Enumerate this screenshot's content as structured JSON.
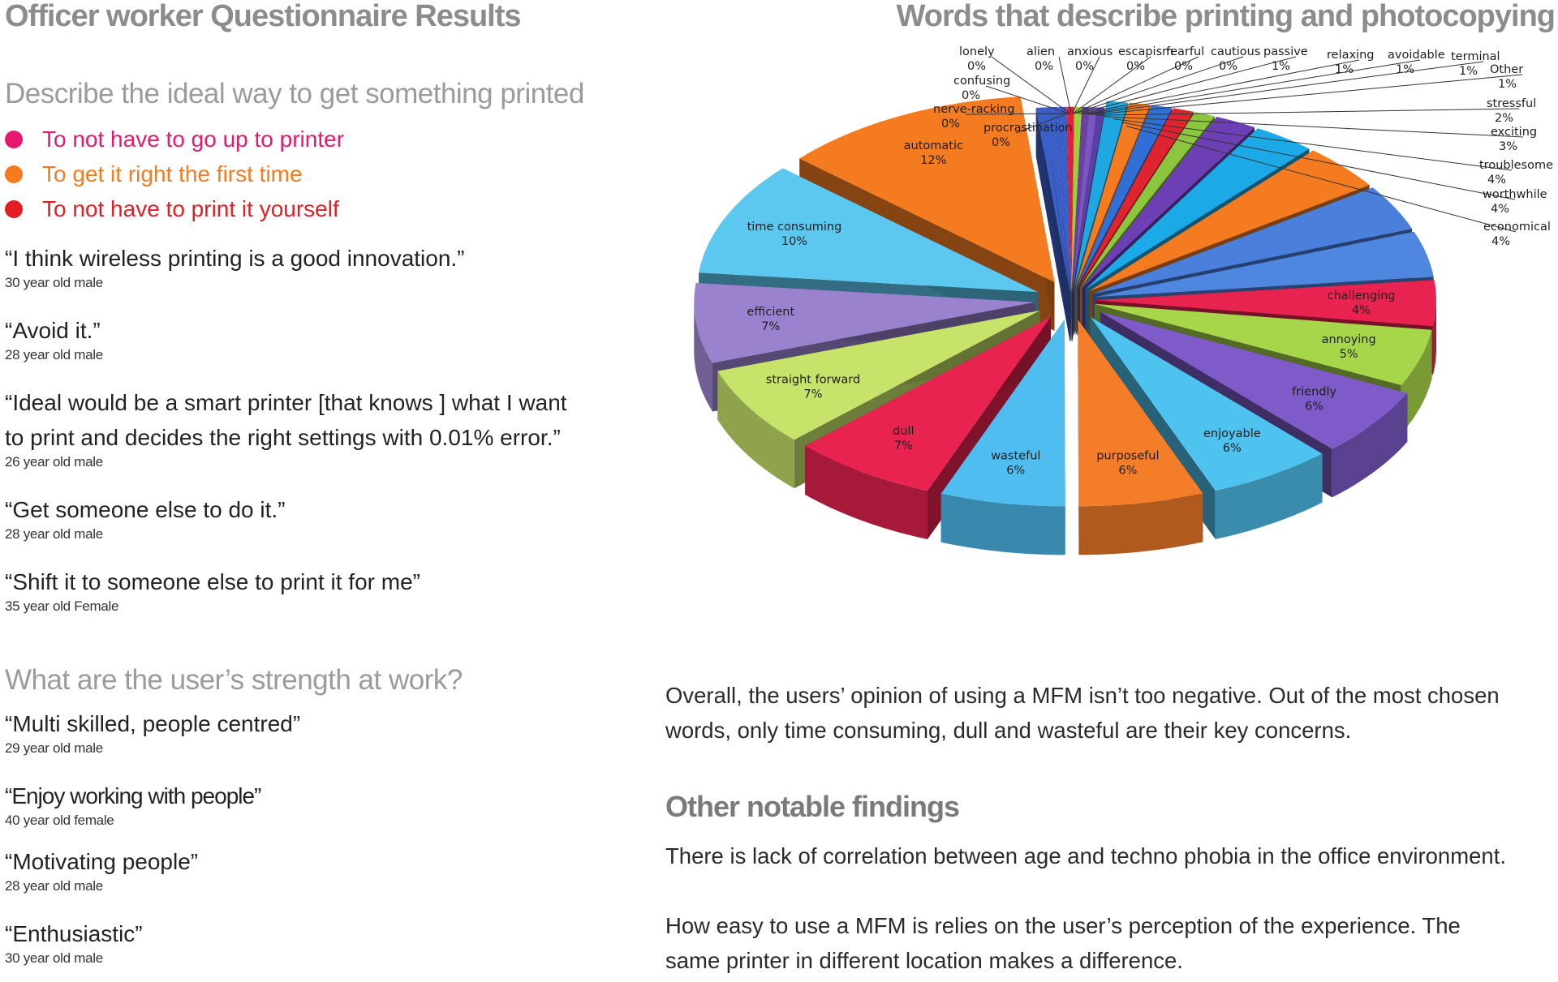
{
  "left": {
    "title": "Officer worker Questionnaire Results",
    "ideal": {
      "heading": "Describe the ideal way to get something printed",
      "items": [
        {
          "text": "To not have to go up to printer",
          "color": "#e6196e"
        },
        {
          "text": "To get it right the first time",
          "color": "#f47b20"
        },
        {
          "text": "To not have to print it yourself",
          "color": "#e31e24"
        }
      ],
      "quotes": [
        {
          "quote": "“I think wireless printing is a good innovation.”",
          "who": "30 year old male"
        },
        {
          "quote": "“Avoid it.”",
          "who": "28 year old male"
        },
        {
          "quote": "“Ideal would be a smart printer [that knows ] what I want",
          "quote2": "to print and decides the right settings with 0.01% error.”",
          "who": "26 year old male"
        },
        {
          "quote": "“Get someone else to do it.”",
          "who": "28 year old male"
        },
        {
          "quote": "“Shift it to someone else to print it for me”",
          "who": "35 year old Female"
        }
      ]
    },
    "strength": {
      "heading": "What are the user’s strength at work?",
      "quotes": [
        {
          "quote": "“Multi skilled, people centred”",
          "who": "29 year old male"
        },
        {
          "quote": "“Enjoy working with people”",
          "who": "40 year old female"
        },
        {
          "quote": "“Motivating people”",
          "who": "28 year old male"
        },
        {
          "quote": "“Enthusiastic”",
          "who": "30 year old male"
        }
      ]
    }
  },
  "right": {
    "summary_line1": "Overall, the users’ opinion of using a MFM isn’t too negative. Out of the most chosen",
    "summary_line2": "words, only time consuming, dull and wasteful are their key concerns.",
    "findings_title": "Other notable findings",
    "finding1": "There is lack of correlation between age and techno phobia in the office environment.",
    "finding2_line1": "How easy to use a MFM is relies on the user’s perception of the experience. The",
    "finding2_line2": "same printer in different location makes a difference."
  },
  "chart_data": {
    "type": "pie",
    "title": "Words that describe printing and photocopying",
    "style": "3d exploded",
    "slices": [
      {
        "label": "lonely",
        "value": 0,
        "display": "0%",
        "color": "#3b5fc9"
      },
      {
        "label": "alien",
        "value": 0,
        "display": "0%",
        "color": "#e01f3d"
      },
      {
        "label": "anxious",
        "value": 0,
        "display": "0%",
        "color": "#9ccf3a"
      },
      {
        "label": "escapism",
        "value": 0,
        "display": "0%",
        "color": "#6a3fa0"
      },
      {
        "label": "fearful",
        "value": 0,
        "display": "0%",
        "color": "#7a56c4"
      },
      {
        "label": "cautious",
        "value": 0,
        "display": "0%",
        "color": "#5a3fa5"
      },
      {
        "label": "passive",
        "value": 1,
        "display": "1%",
        "color": "#1ea7e0"
      },
      {
        "label": "relaxing",
        "value": 1,
        "display": "1%",
        "color": "#f47b20"
      },
      {
        "label": "avoidable",
        "value": 1,
        "display": "1%",
        "color": "#2f6fd6"
      },
      {
        "label": "terminal",
        "value": 1,
        "display": "1%",
        "color": "#e0242f"
      },
      {
        "label": "Other",
        "value": 1,
        "display": "1%",
        "color": "#8cc63f"
      },
      {
        "label": "stressful",
        "value": 2,
        "display": "2%",
        "color": "#6c3fb5"
      },
      {
        "label": "exciting",
        "value": 3,
        "display": "3%",
        "color": "#1ba9e8"
      },
      {
        "label": "troublesome",
        "value": 4,
        "display": "4%",
        "color": "#f47b20"
      },
      {
        "label": "worthwhile",
        "value": 4,
        "display": "4%",
        "color": "#4a7fdc"
      },
      {
        "label": "economical",
        "value": 4,
        "display": "4%",
        "color": "#4f86e0"
      },
      {
        "label": "challenging",
        "value": 4,
        "display": "4%",
        "color": "#e8234f"
      },
      {
        "label": "annoying",
        "value": 5,
        "display": "5%",
        "color": "#a8d64a"
      },
      {
        "label": "friendly",
        "value": 6,
        "display": "6%",
        "color": "#7e5bc8"
      },
      {
        "label": "enjoyable",
        "value": 6,
        "display": "6%",
        "color": "#4fc3ef"
      },
      {
        "label": "purposeful",
        "value": 6,
        "display": "6%",
        "color": "#f47d2a"
      },
      {
        "label": "wasteful",
        "value": 6,
        "display": "6%",
        "color": "#4fbdf0"
      },
      {
        "label": "dull",
        "value": 7,
        "display": "7%",
        "color": "#e8234f"
      },
      {
        "label": "straight forward",
        "value": 7,
        "display": "7%",
        "color": "#c7e36a"
      },
      {
        "label": "efficient",
        "value": 7,
        "display": "7%",
        "color": "#9b82cf"
      },
      {
        "label": "time consuming",
        "value": 10,
        "display": "10%",
        "color": "#5cc7ef"
      },
      {
        "label": "automatic",
        "value": 12,
        "display": "12%",
        "color": "#f47b20"
      },
      {
        "label": "procrastination",
        "value": 0,
        "display": "0%",
        "color": "#3b5fc9"
      },
      {
        "label": "nerve-racking",
        "value": 0,
        "display": "0%",
        "color": "#3b5fc9"
      },
      {
        "label": "confusing",
        "value": 0,
        "display": "0%",
        "color": "#3b5fc9"
      }
    ]
  }
}
